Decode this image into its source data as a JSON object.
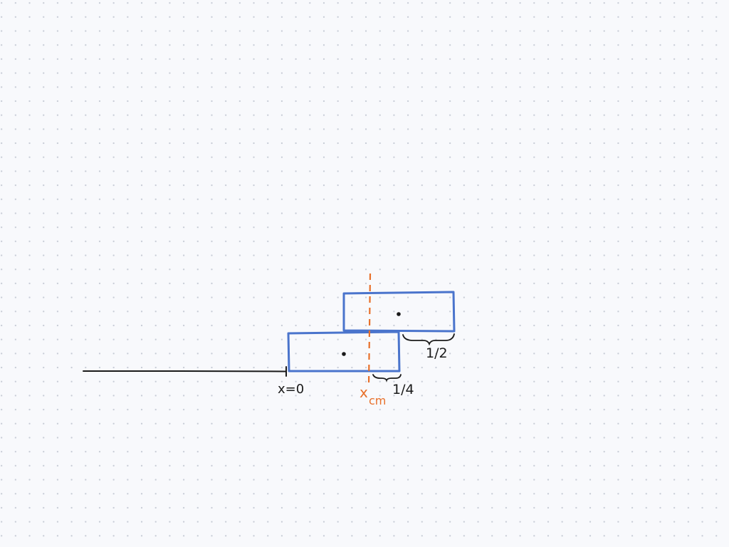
{
  "labels": {
    "origin": "x=0",
    "xcm_main": "x",
    "xcm_sub": "cm",
    "bottom_overhang": "1/4",
    "top_overhang": "1/2"
  },
  "colors": {
    "block": "#4a74cc",
    "xcm": "#e8702a",
    "ink": "#1a1a1a",
    "background": "#f8f9fc"
  }
}
